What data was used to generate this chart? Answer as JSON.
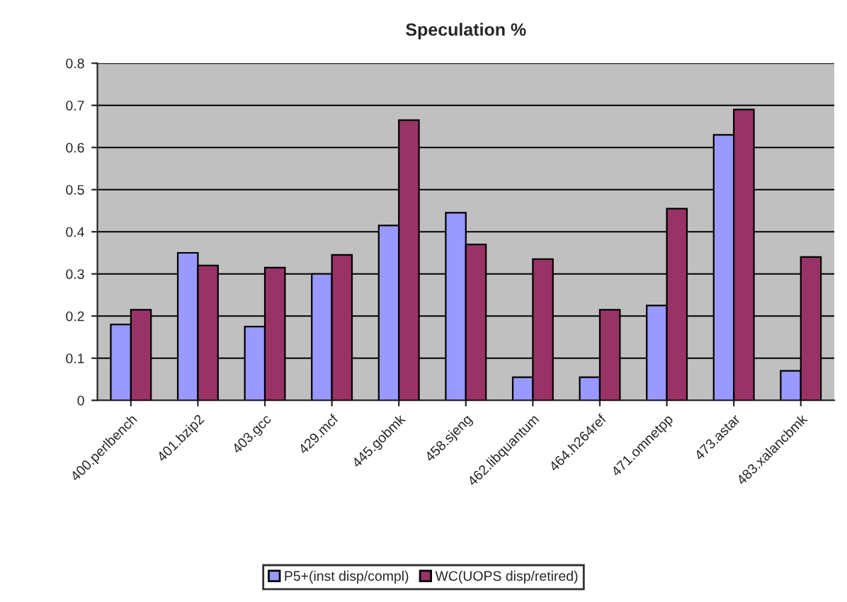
{
  "chart_data": {
    "type": "bar",
    "title": "Speculation %",
    "categories": [
      "400.perlbench",
      "401.bzip2",
      "403.gcc",
      "429.mcf",
      "445.gobmk",
      "458.sjeng",
      "462.libquantum",
      "464.h264ref",
      "471.omnetpp",
      "473.astar",
      "483.xalancbmk"
    ],
    "series": [
      {
        "name": "P5+(inst disp/compl)",
        "color": "#9999ff",
        "values": [
          0.18,
          0.35,
          0.175,
          0.3,
          0.415,
          0.445,
          0.055,
          0.055,
          0.225,
          0.63,
          0.07
        ]
      },
      {
        "name": "WC(UOPS disp/retired)",
        "color": "#993366",
        "values": [
          0.215,
          0.32,
          0.315,
          0.345,
          0.665,
          0.37,
          0.335,
          0.215,
          0.455,
          0.69,
          0.34
        ]
      }
    ],
    "ylim": [
      0,
      0.8
    ],
    "yticks": [
      0,
      0.1,
      0.2,
      0.3,
      0.4,
      0.5,
      0.6,
      0.7,
      0.8
    ],
    "grid": "y",
    "legend": "bottom"
  }
}
